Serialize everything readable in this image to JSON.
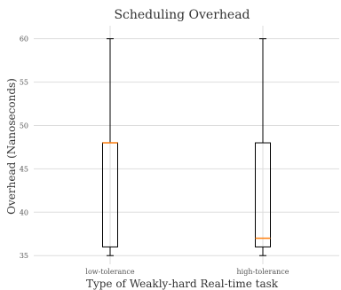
{
  "chart_data": {
    "type": "box",
    "title": "Scheduling Overhead",
    "xlabel": "Type of Weakly-hard Real-time task",
    "ylabel": "Overhead (Nanoseconds)",
    "ylim": [
      34,
      61.5
    ],
    "yticks": [
      35,
      40,
      45,
      50,
      55,
      60
    ],
    "grid": true,
    "categories": [
      "low-tolerance",
      "high-tolerance"
    ],
    "boxes": [
      {
        "name": "low-tolerance",
        "min": 35,
        "q1": 36,
        "median": 48,
        "q3": 48,
        "max": 60
      },
      {
        "name": "high-tolerance",
        "min": 35,
        "q1": 36,
        "median": 37,
        "q3": 48,
        "max": 60
      }
    ],
    "colors": {
      "box": "#000000",
      "median": "#ff7f0e",
      "grid": "#dddddd"
    }
  }
}
